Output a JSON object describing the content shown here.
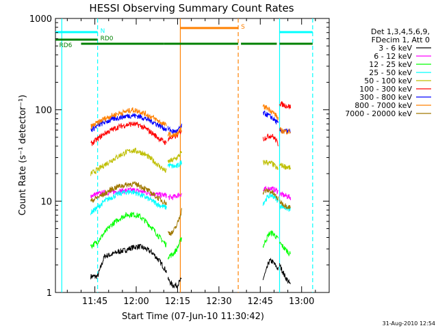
{
  "chart_data": {
    "type": "line",
    "title": "HESSI Observing Summary Count Rates",
    "xlabel": "Start Time (07-Jun-10 11:30:42)",
    "ylabel": "Count Rate (s⁻¹ detector⁻¹)",
    "ylog": true,
    "xlim": [
      "11:30:42",
      "13:10:00"
    ],
    "ylim": [
      1,
      1000
    ],
    "x_ticks": [
      "11:45",
      "12:00",
      "12:15",
      "12:30",
      "12:45",
      "13:00"
    ],
    "y_ticks": [
      "1",
      "10",
      "100",
      "1000"
    ],
    "legend": {
      "position": "top-right",
      "header": [
        "Det 1,3,4,5,6,9,",
        "FDecim 1, Att 0"
      ]
    },
    "footer": "31-Aug-2010 12:54",
    "segments": [
      [
        "11:43:30",
        "12:11:00"
      ],
      [
        "12:11:30",
        "12:16:30"
      ],
      [
        "12:46:00",
        "12:51:30"
      ],
      [
        "12:52:00",
        "12:56:00"
      ]
    ],
    "series": [
      {
        "name": "3 - 6 keV",
        "color": "#000000",
        "values": [
          [
            1.5,
            1.5,
            2.5,
            2.6,
            2.8,
            2.9,
            3.1,
            3.2,
            3.0,
            2.7,
            2.2,
            1.7
          ],
          [
            1.4,
            1.2,
            1.2,
            1.4
          ],
          [
            1.4,
            1.7,
            2.2,
            2.2,
            2.0,
            1.8
          ],
          [
            2.0,
            1.5,
            1.2
          ]
        ]
      },
      {
        "name": "6 - 12 keV",
        "color": "#ff00ff",
        "values": [
          [
            11.5,
            12,
            12.3,
            12.5,
            12.8,
            13,
            13.2,
            12.9,
            12.5,
            12.1,
            11.7,
            11.6
          ],
          [
            11,
            11,
            11.5,
            12
          ],
          [
            13,
            13.5,
            13.8,
            13.6,
            13.3,
            12.8
          ],
          [
            12,
            11.5,
            11
          ]
        ]
      },
      {
        "name": "12 - 25 keV",
        "color": "#00ff00",
        "values": [
          [
            3.2,
            3.6,
            4.5,
            5.5,
            6.3,
            7.0,
            7.2,
            6.9,
            6.0,
            5.0,
            4.0,
            3.3
          ],
          [
            2.5,
            2.6,
            3.0,
            4.0
          ],
          [
            3.2,
            3.8,
            4.4,
            4.5,
            4.2,
            3.8
          ],
          [
            3.5,
            3.0,
            2.6
          ]
        ]
      },
      {
        "name": "25 - 50 keV",
        "color": "#00ffff",
        "values": [
          [
            7.5,
            8.5,
            10,
            11,
            12,
            12.5,
            12.7,
            12,
            11,
            10,
            9,
            8.5
          ],
          [
            25,
            24,
            24,
            27
          ],
          [
            9.5,
            10.5,
            11.5,
            11.5,
            11,
            10
          ],
          [
            9,
            8.5,
            8
          ]
        ]
      },
      {
        "name": "50 - 100 keV",
        "color": "#bebe00",
        "values": [
          [
            20,
            22,
            25,
            28,
            31,
            34,
            36,
            35,
            32,
            28,
            24,
            21
          ],
          [
            27,
            28,
            30,
            34
          ],
          [
            26,
            27,
            26,
            26,
            24,
            22
          ],
          [
            25,
            24,
            23
          ]
        ]
      },
      {
        "name": "100 - 300 keV",
        "color": "#ff0000",
        "values": [
          [
            42,
            48,
            55,
            60,
            65,
            68,
            70,
            68,
            62,
            55,
            48,
            43
          ],
          [
            48,
            50,
            52,
            60
          ],
          [
            48,
            50,
            52,
            52,
            48,
            42
          ],
          [
            118,
            112,
            108
          ]
        ]
      },
      {
        "name": "300 - 800 keV",
        "color": "#0000ff",
        "values": [
          [
            60,
            67,
            73,
            78,
            82,
            85,
            87,
            85,
            80,
            74,
            67,
            61
          ],
          [
            62,
            58,
            58,
            66
          ],
          [
            92,
            90,
            86,
            82,
            76,
            70
          ],
          [
            60,
            58,
            58
          ]
        ]
      },
      {
        "name": "800 - 7000 keV",
        "color": "#ff8000",
        "values": [
          [
            65,
            72,
            80,
            86,
            91,
            95,
            100,
            97,
            90,
            82,
            74,
            67
          ],
          [
            55,
            52,
            54,
            62
          ],
          [
            108,
            106,
            102,
            96,
            89,
            80
          ],
          [
            60,
            58,
            58
          ]
        ]
      },
      {
        "name": "7000 - 20000 keV",
        "color": "#a07800",
        "values": [
          [
            10,
            11,
            12,
            13.5,
            14.5,
            15,
            15.5,
            15,
            13.5,
            12,
            10.5,
            9.5
          ],
          [
            4.5,
            4.5,
            5.5,
            8
          ],
          [
            12.5,
            13,
            13,
            12.5,
            11.5,
            10.5
          ],
          [
            10,
            9,
            8.5
          ]
        ]
      }
    ],
    "flags": [
      {
        "label": "N",
        "color": "#00ffff",
        "intervals": [
          [
            "11:30:42",
            "11:46:00"
          ],
          [
            "12:52:00",
            "13:04:00"
          ]
        ]
      },
      {
        "label": "S",
        "color": "#ff8000",
        "intervals": [
          [
            "12:16:00",
            "12:37:00"
          ]
        ]
      },
      {
        "label": "RD0",
        "color": "#008000",
        "intervals": [
          [
            "11:30:42",
            "11:46:00"
          ]
        ]
      },
      {
        "label": "RD6",
        "color": "#008000",
        "intervals": [
          [
            "11:40:00",
            "12:10:00"
          ],
          [
            "12:10:00",
            "12:37:00"
          ],
          [
            "12:38:00",
            "12:51:00"
          ],
          [
            "12:52:00",
            "13:04:00"
          ]
        ]
      }
    ],
    "vlines": [
      {
        "time": "11:33:00",
        "color": "#00ffff",
        "style": "solid"
      },
      {
        "time": "11:46:00",
        "color": "#00ffff",
        "style": "dashed"
      },
      {
        "time": "12:16:00",
        "color": "#ff8000",
        "style": "solid"
      },
      {
        "time": "12:37:00",
        "color": "#ff8000",
        "style": "dashed"
      },
      {
        "time": "12:52:00",
        "color": "#00ffff",
        "style": "solid"
      },
      {
        "time": "13:04:00",
        "color": "#00ffff",
        "style": "dashed"
      }
    ]
  }
}
